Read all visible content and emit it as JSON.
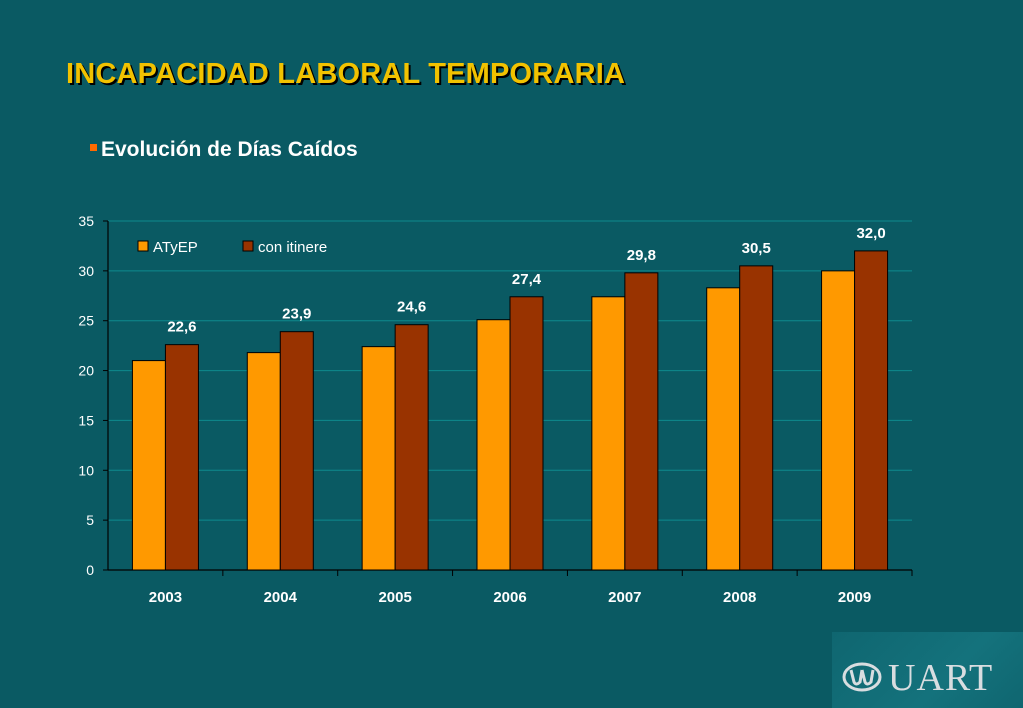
{
  "slide": {
    "title": "INCAPACIDAD LABORAL TEMPORARIA",
    "subtitle": "Evolución de Días Caídos",
    "logo_text": "UART"
  },
  "colors": {
    "background": "#0a5a63",
    "title": "#f2c200",
    "bullet": "#ff6a00",
    "series_atyep": "#ff9900",
    "series_itinere": "#993300",
    "gridline": "#0e8a8e"
  },
  "chart_data": {
    "type": "bar",
    "categories": [
      "2003",
      "2004",
      "2005",
      "2006",
      "2007",
      "2008",
      "2009"
    ],
    "series": [
      {
        "name": "ATyEP",
        "values": [
          21.0,
          21.8,
          22.4,
          25.1,
          27.4,
          28.3,
          30.0
        ],
        "color": "#ff9900"
      },
      {
        "name": "con itinere",
        "values": [
          22.6,
          23.9,
          24.6,
          27.4,
          29.8,
          30.5,
          32.0
        ],
        "color": "#993300",
        "labels": [
          "22,6",
          "23,9",
          "24,6",
          "27,4",
          "29,8",
          "30,5",
          "32,0"
        ]
      }
    ],
    "ylim": [
      0,
      35
    ],
    "yticks": [
      0,
      5,
      10,
      15,
      20,
      25,
      30,
      35
    ],
    "grid": true,
    "legend": "top-left"
  }
}
